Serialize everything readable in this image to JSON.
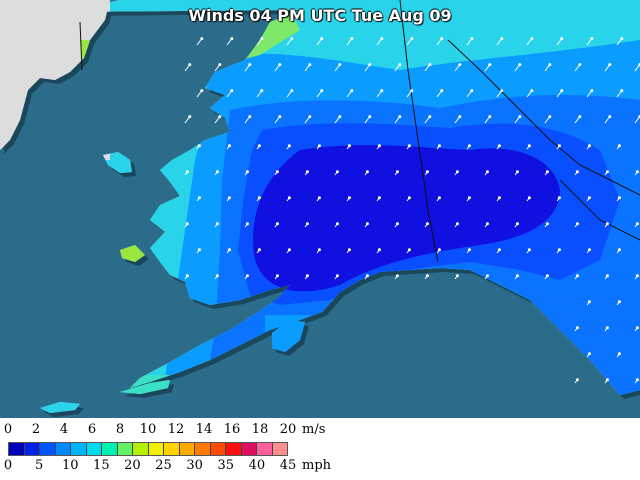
{
  "title": "Winds 04 PM UTC Tue Aug 09",
  "legend": {
    "ms_unit": "m/s",
    "mph_unit": "mph",
    "ms_ticks": [
      "0",
      "2",
      "4",
      "6",
      "8",
      "10",
      "12",
      "14",
      "16",
      "18",
      "20"
    ],
    "mph_ticks": [
      "0",
      "5",
      "10",
      "15",
      "20",
      "25",
      "30",
      "35",
      "40",
      "45"
    ],
    "colors": [
      "#0000b8",
      "#0022e8",
      "#0055ff",
      "#0088ff",
      "#00b4ff",
      "#00dcee",
      "#00f0b0",
      "#66f066",
      "#b4f000",
      "#f0f000",
      "#ffd200",
      "#ffaa00",
      "#ff7a00",
      "#ff4a00",
      "#ff1010",
      "#e01060",
      "#ff5f9f",
      "#ff8f8f"
    ]
  },
  "palette": {
    "ocean": "#2b6c8a",
    "land_outside": "#dddddd",
    "wind_light": "#1010e0",
    "wind_moderate": "#0a73ff",
    "wind_fresh": "#29d4ea",
    "wind_strong": "#9be53f"
  },
  "map_features": {
    "vector_arrows": "white wind vectors",
    "borders": "black boundary lines"
  }
}
